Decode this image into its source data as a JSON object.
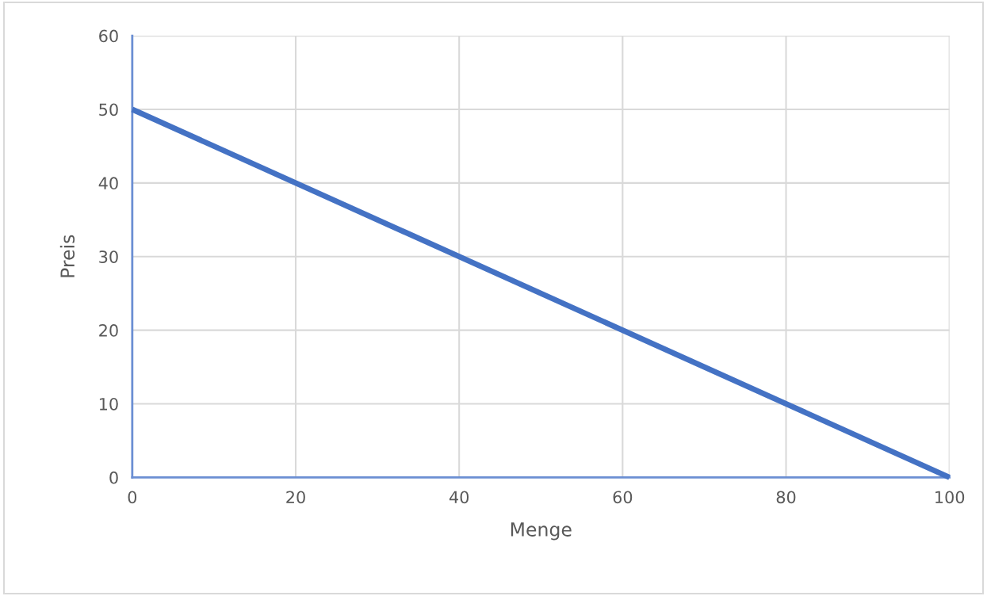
{
  "chart_data": {
    "type": "line",
    "xlabel": "Menge",
    "ylabel": "Preis",
    "x": [
      0,
      100
    ],
    "series": [
      {
        "color": "#4472c4",
        "values": [
          50,
          0
        ]
      }
    ],
    "xlim": [
      0,
      100
    ],
    "xticks": [
      0,
      20,
      40,
      60,
      80,
      100
    ],
    "ylim": [
      0,
      60
    ],
    "yticks": [
      0,
      10,
      20,
      30,
      40,
      50,
      60
    ],
    "grid": true,
    "marker": "none",
    "line_style": "solid"
  }
}
